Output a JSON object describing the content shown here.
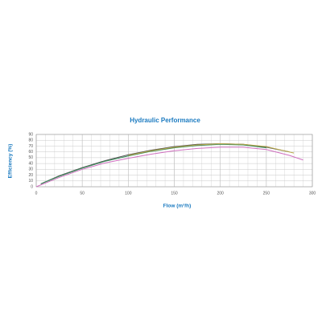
{
  "chart_data": {
    "type": "line",
    "title": "Hydraulic Performance",
    "xlabel": "Flow (m³/h)",
    "ylabel": "Efficiency (%)",
    "xlim": [
      0,
      300
    ],
    "xticks": [
      0,
      50,
      100,
      150,
      200,
      250,
      300
    ],
    "ylim": [
      0,
      90
    ],
    "yticks": [
      0,
      10,
      20,
      30,
      40,
      50,
      60,
      70,
      80,
      90
    ],
    "grid": true,
    "series": [
      {
        "color": "#555555",
        "x": [
          5,
          25,
          50,
          75,
          100,
          125,
          150,
          175,
          200,
          225,
          250,
          275
        ],
        "values": [
          5,
          19,
          33,
          45,
          55,
          63,
          69,
          73,
          74,
          73,
          68,
          60
        ]
      },
      {
        "color": "#3a8a5a",
        "x": [
          5,
          25,
          50,
          75,
          100,
          125,
          150,
          175,
          200,
          225,
          250
        ],
        "values": [
          5,
          18,
          32,
          44,
          53,
          61,
          67,
          71,
          73,
          72,
          67
        ]
      },
      {
        "color": "#b8a84a",
        "x": [
          100,
          125,
          150,
          175,
          200,
          225,
          250,
          280
        ],
        "values": [
          54,
          62,
          68,
          72,
          74,
          73,
          69,
          58
        ]
      },
      {
        "color": "#d070c0",
        "x": [
          0,
          25,
          50,
          75,
          100,
          125,
          150,
          175,
          200,
          225,
          250,
          275,
          290
        ],
        "values": [
          0,
          16,
          30,
          41,
          49,
          56,
          62,
          66,
          68,
          68,
          64,
          54,
          46
        ]
      }
    ]
  }
}
